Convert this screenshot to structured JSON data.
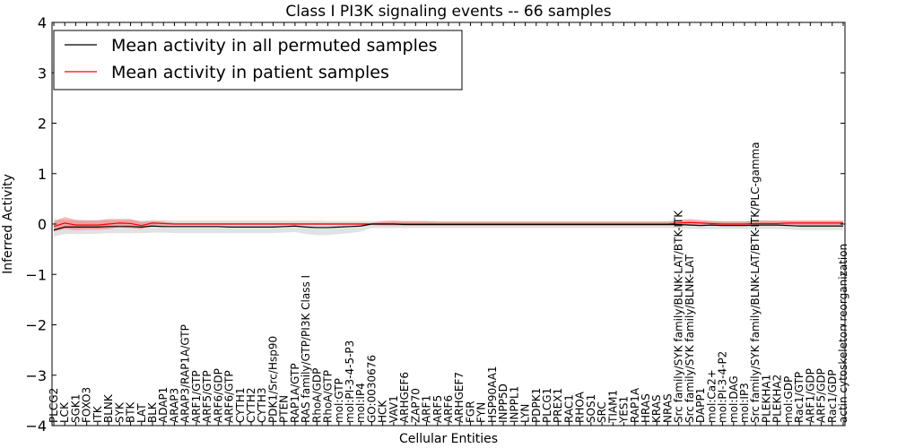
{
  "chart_data": {
    "type": "line",
    "title": "Class I PI3K signaling events -- 66 samples",
    "xlabel": "Cellular Entities",
    "ylabel": "Inferred Activity",
    "ylim": [
      -4,
      4
    ],
    "yticks": [
      4,
      3,
      2,
      1,
      0,
      -1,
      -2,
      -3,
      -4
    ],
    "ytick_labels": [
      "4",
      "3",
      "2",
      "1",
      "0",
      "−1",
      "−2",
      "−3",
      "−4"
    ],
    "legend_position": "top-left",
    "categories": [
      "PLCG2",
      "LCK",
      "SGK1",
      "FOXO3",
      "ITK",
      "BLNK",
      "SYK",
      "BTK",
      "LAT",
      "BLK",
      "ADAP1",
      "ARAP3",
      "ARAP3/RAP1A/GTP",
      "ARF1/GTP",
      "ARF5/GTP",
      "ARF6/GDP",
      "ARF6/GTP",
      "CYTH1",
      "CYTH2",
      "CYTH3",
      "PDK1/Src/Hsp90",
      "PTEN",
      "RAP1A/GTP",
      "RAS family/GTP/PI3K Class I",
      "RhoA/GDP",
      "RhoA/GTP",
      "mol:GTP",
      "mol:PI-3-4-5-P3",
      "mol:IP4",
      "GO:0030676",
      "HCK",
      "VAV1",
      "ARHGEF6",
      "ZAP70",
      "ARF1",
      "ARF5",
      "ARF6",
      "ARHGEF7",
      "FGR",
      "FYN",
      "HSP90AA1",
      "INPP5D",
      "INPPL1",
      "LYN",
      "PDPK1",
      "PLCG1",
      "PREX1",
      "RAC1",
      "RHOA",
      "SOS1",
      "SRC",
      "TIAM1",
      "YES1",
      "RAP1A",
      "HRAS",
      "KRAS",
      "NRAS",
      "Src family/SYK family/BLNK-LAT/BTK-ITK",
      "Src family/SYK family/BLNK-LAT",
      "DAPP1",
      "mol:Ca2+",
      "mol:PI-3-4-P2",
      "mol:DAG",
      "mol:IP3",
      "Src family/SYK family/BLNK-LAT/BTK-ITK/PLC-gamma",
      "PLEKHA1",
      "PLEKHA2",
      "mol:GDP",
      "Rac1/GTP",
      "ARF1/GDP",
      "ARF5/GDP",
      "Rac1/GDP",
      "actin cytoskeleton reorganization"
    ],
    "series": [
      {
        "name": "Mean activity in all permuted samples",
        "color": "#000000",
        "values": [
          -0.12,
          -0.06,
          -0.06,
          -0.06,
          -0.06,
          -0.05,
          -0.05,
          -0.05,
          -0.06,
          -0.04,
          -0.05,
          -0.05,
          -0.05,
          -0.05,
          -0.05,
          -0.05,
          -0.06,
          -0.06,
          -0.06,
          -0.06,
          -0.06,
          -0.05,
          -0.04,
          -0.06,
          -0.07,
          -0.07,
          -0.06,
          -0.05,
          -0.04,
          0,
          0,
          0,
          -0.01,
          -0.01,
          -0.01,
          -0.01,
          -0.01,
          -0.01,
          -0.01,
          -0.01,
          -0.01,
          -0.01,
          -0.01,
          -0.01,
          -0.01,
          -0.01,
          -0.01,
          -0.01,
          -0.01,
          -0.01,
          -0.01,
          -0.01,
          -0.01,
          -0.01,
          -0.01,
          -0.01,
          -0.01,
          -0.01,
          -0.02,
          -0.03,
          -0.02,
          -0.03,
          -0.03,
          -0.03,
          -0.02,
          -0.02,
          -0.02,
          -0.03,
          -0.04,
          -0.04,
          -0.04,
          -0.04,
          -0.04
        ],
        "band_upper": [
          0.1,
          0.08,
          0.08,
          0.08,
          0.08,
          0.08,
          0.08,
          0.08,
          0.07,
          0.08,
          0.08,
          0.07,
          0.07,
          0.07,
          0.07,
          0.07,
          0.07,
          0.07,
          0.07,
          0.07,
          0.07,
          0.07,
          0.07,
          0.07,
          0.07,
          0.06,
          0.06,
          0.06,
          0.06,
          0.06,
          0.05,
          0.05,
          0.05,
          0.05,
          0.05,
          0.05,
          0.05,
          0.05,
          0.05,
          0.05,
          0.05,
          0.05,
          0.05,
          0.05,
          0.05,
          0.05,
          0.05,
          0.05,
          0.05,
          0.05,
          0.05,
          0.05,
          0.05,
          0.05,
          0.05,
          0.05,
          0.05,
          0.06,
          0.07,
          0.06,
          0.06,
          0.06,
          0.06,
          0.06,
          0.07,
          0.07,
          0.06,
          0.06,
          0.06,
          0.06,
          0.06,
          0.06,
          0.06
        ],
        "band_lower": [
          -0.25,
          -0.2,
          -0.2,
          -0.2,
          -0.19,
          -0.18,
          -0.18,
          -0.18,
          -0.18,
          -0.17,
          -0.17,
          -0.18,
          -0.18,
          -0.18,
          -0.18,
          -0.18,
          -0.18,
          -0.18,
          -0.18,
          -0.18,
          -0.18,
          -0.17,
          -0.16,
          -0.2,
          -0.22,
          -0.22,
          -0.2,
          -0.18,
          -0.15,
          -0.08,
          -0.08,
          -0.08,
          -0.08,
          -0.08,
          -0.08,
          -0.08,
          -0.08,
          -0.08,
          -0.08,
          -0.08,
          -0.08,
          -0.08,
          -0.08,
          -0.08,
          -0.08,
          -0.08,
          -0.08,
          -0.08,
          -0.08,
          -0.08,
          -0.08,
          -0.08,
          -0.08,
          -0.08,
          -0.08,
          -0.08,
          -0.08,
          -0.09,
          -0.1,
          -0.1,
          -0.1,
          -0.1,
          -0.1,
          -0.1,
          -0.1,
          -0.1,
          -0.1,
          -0.11,
          -0.12,
          -0.12,
          -0.12,
          -0.12,
          -0.12
        ]
      },
      {
        "name": "Mean activity in patient samples",
        "color": "#ff0000",
        "values": [
          -0.05,
          0.02,
          -0.02,
          -0.02,
          -0.02,
          0,
          0.02,
          0.01,
          -0.03,
          0.02,
          0.01,
          0,
          0,
          0,
          0,
          0,
          0,
          0,
          0,
          0,
          0,
          0,
          0,
          0,
          0,
          0,
          0,
          0,
          0,
          0,
          0,
          0,
          0,
          0,
          0,
          0,
          0,
          0,
          0,
          0,
          0,
          0,
          0,
          0,
          0,
          0,
          0,
          0,
          0,
          0,
          0,
          0,
          0,
          0,
          0,
          0,
          0,
          0.02,
          0.03,
          0.02,
          0.01,
          0,
          0,
          0,
          0.01,
          0.01,
          0.01,
          0.02,
          0.02,
          0.02,
          0.02,
          0.02,
          0.02
        ],
        "band_upper": [
          0.05,
          0.14,
          0.08,
          0.07,
          0.07,
          0.1,
          0.1,
          0.1,
          0.04,
          0.06,
          0.05,
          0.02,
          0.02,
          0.02,
          0.02,
          0.02,
          0.02,
          0.02,
          0.02,
          0.02,
          0.02,
          0.02,
          0.02,
          0.02,
          0.02,
          0.02,
          0.02,
          0.02,
          0.02,
          0.02,
          0.06,
          0.07,
          0.06,
          0.06,
          0.06,
          0.05,
          0.05,
          0.05,
          0.05,
          0.05,
          0.05,
          0.05,
          0.05,
          0.05,
          0.05,
          0.05,
          0.05,
          0.05,
          0.05,
          0.05,
          0.05,
          0.05,
          0.05,
          0.05,
          0.05,
          0.05,
          0.05,
          0.08,
          0.1,
          0.08,
          0.06,
          0.05,
          0.05,
          0.05,
          0.07,
          0.07,
          0.07,
          0.07,
          0.07,
          0.07,
          0.07,
          0.07,
          0.07
        ],
        "band_lower": [
          -0.15,
          -0.1,
          -0.12,
          -0.11,
          -0.11,
          -0.1,
          -0.06,
          -0.08,
          -0.1,
          -0.02,
          -0.03,
          -0.02,
          -0.02,
          -0.02,
          -0.02,
          -0.02,
          -0.02,
          -0.02,
          -0.02,
          -0.02,
          -0.02,
          -0.02,
          -0.02,
          -0.02,
          -0.02,
          -0.02,
          -0.02,
          -0.02,
          -0.02,
          -0.02,
          -0.03,
          -0.03,
          -0.03,
          -0.03,
          -0.03,
          -0.03,
          -0.03,
          -0.03,
          -0.03,
          -0.03,
          -0.03,
          -0.03,
          -0.03,
          -0.03,
          -0.03,
          -0.03,
          -0.03,
          -0.03,
          -0.03,
          -0.03,
          -0.03,
          -0.03,
          -0.03,
          -0.03,
          -0.03,
          -0.03,
          -0.03,
          -0.03,
          -0.03,
          -0.03,
          -0.03,
          -0.03,
          -0.03,
          -0.03,
          -0.03,
          -0.03,
          -0.03,
          -0.02,
          -0.02,
          -0.02,
          -0.02,
          -0.02,
          -0.02
        ]
      }
    ]
  }
}
